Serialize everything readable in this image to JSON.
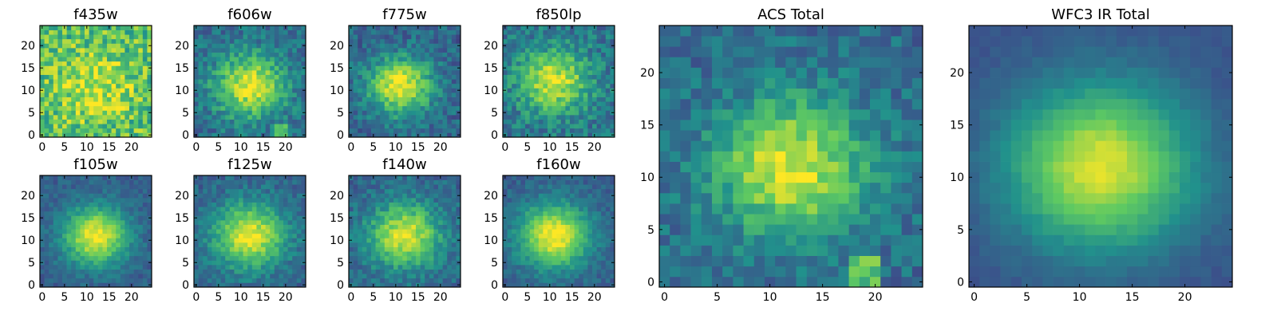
{
  "colormap": [
    "#440154",
    "#3b528b",
    "#21918c",
    "#5ec962",
    "#fde725"
  ],
  "chart_data": [
    {
      "type": "heatmap",
      "title": "f435w",
      "xticks": [
        "0",
        "5",
        "10",
        "15",
        "20"
      ],
      "yticks": [
        "0",
        "5",
        "10",
        "15",
        "20"
      ],
      "xlim": [
        -0.5,
        24.5
      ],
      "ylim": [
        -0.5,
        24.5
      ],
      "grid": false,
      "summary": "low-signal noise field; no clear source",
      "peak": {
        "x": 12,
        "y": 11,
        "sigma": 5,
        "amp": 0.25
      },
      "background": 0.7,
      "noise": 0.22
    },
    {
      "type": "heatmap",
      "title": "f606w",
      "xticks": [
        "0",
        "5",
        "10",
        "15",
        "20"
      ],
      "yticks": [
        "0",
        "5",
        "10",
        "15",
        "20"
      ],
      "xlim": [
        -0.5,
        24.5
      ],
      "ylim": [
        -0.5,
        24.5
      ],
      "grid": false,
      "summary": "source centered near (12, 11) plus compact knot near (19, 1)",
      "peak": {
        "x": 12,
        "y": 11,
        "sigma": 5,
        "amp": 0.6
      },
      "background": 0.35,
      "noise": 0.14
    },
    {
      "type": "heatmap",
      "title": "f775w",
      "xticks": [
        "0",
        "5",
        "10",
        "15",
        "20"
      ],
      "yticks": [
        "0",
        "5",
        "10",
        "15",
        "20"
      ],
      "xlim": [
        -0.5,
        24.5
      ],
      "ylim": [
        -0.5,
        24.5
      ],
      "grid": false,
      "summary": "source centered near (11, 11)",
      "peak": {
        "x": 11,
        "y": 11,
        "sigma": 4.5,
        "amp": 0.65
      },
      "background": 0.32,
      "noise": 0.13
    },
    {
      "type": "heatmap",
      "title": "f850lp",
      "xticks": [
        "0",
        "5",
        "10",
        "15",
        "20"
      ],
      "yticks": [
        "0",
        "5",
        "10",
        "15",
        "20"
      ],
      "xlim": [
        -0.5,
        24.5
      ],
      "ylim": [
        -0.5,
        24.5
      ],
      "grid": false,
      "summary": "source centered near (11, 12)",
      "peak": {
        "x": 11,
        "y": 12,
        "sigma": 5,
        "amp": 0.55
      },
      "background": 0.38,
      "noise": 0.15
    },
    {
      "type": "heatmap",
      "title": "f105w",
      "xticks": [
        "0",
        "5",
        "10",
        "15",
        "20"
      ],
      "yticks": [
        "0",
        "5",
        "10",
        "15",
        "20"
      ],
      "xlim": [
        -0.5,
        24.5
      ],
      "ylim": [
        -0.5,
        24.5
      ],
      "grid": false,
      "summary": "smooth source centered near (12, 11)",
      "peak": {
        "x": 12,
        "y": 11,
        "sigma": 4.5,
        "amp": 0.7
      },
      "background": 0.3,
      "noise": 0.08
    },
    {
      "type": "heatmap",
      "title": "f125w",
      "xticks": [
        "0",
        "5",
        "10",
        "15",
        "20"
      ],
      "yticks": [
        "0",
        "5",
        "10",
        "15",
        "20"
      ],
      "xlim": [
        -0.5,
        24.5
      ],
      "ylim": [
        -0.5,
        24.5
      ],
      "grid": false,
      "summary": "source centered near (12, 11)",
      "peak": {
        "x": 12,
        "y": 11,
        "sigma": 5,
        "amp": 0.65
      },
      "background": 0.32,
      "noise": 0.1
    },
    {
      "type": "heatmap",
      "title": "f140w",
      "xticks": [
        "0",
        "5",
        "10",
        "15",
        "20"
      ],
      "yticks": [
        "0",
        "5",
        "10",
        "15",
        "20"
      ],
      "xlim": [
        -0.5,
        24.5
      ],
      "ylim": [
        -0.5,
        24.5
      ],
      "grid": false,
      "summary": "source centered near (12, 11)",
      "peak": {
        "x": 12,
        "y": 11,
        "sigma": 5,
        "amp": 0.62
      },
      "background": 0.33,
      "noise": 0.11
    },
    {
      "type": "heatmap",
      "title": "f160w",
      "xticks": [
        "0",
        "5",
        "10",
        "15",
        "20"
      ],
      "yticks": [
        "0",
        "5",
        "10",
        "15",
        "20"
      ],
      "xlim": [
        -0.5,
        24.5
      ],
      "ylim": [
        -0.5,
        24.5
      ],
      "grid": false,
      "summary": "smooth source centered near (11, 11)",
      "peak": {
        "x": 11,
        "y": 11,
        "sigma": 5,
        "amp": 0.7
      },
      "background": 0.3,
      "noise": 0.08
    },
    {
      "type": "heatmap",
      "title": "ACS Total",
      "xticks": [
        "0",
        "5",
        "10",
        "15",
        "20"
      ],
      "yticks": [
        "0",
        "5",
        "10",
        "15",
        "20"
      ],
      "xlim": [
        -0.5,
        24.5
      ],
      "ylim": [
        -0.5,
        24.5
      ],
      "grid": false,
      "summary": "peak near (12, 11) plus bright knot near (19, 1)",
      "peak": {
        "x": 12,
        "y": 11,
        "sigma": 4.5,
        "amp": 0.6
      },
      "background": 0.35,
      "noise": 0.12
    },
    {
      "type": "heatmap",
      "title": "WFC3 IR Total",
      "xticks": [
        "0",
        "5",
        "10",
        "15",
        "20"
      ],
      "yticks": [
        "0",
        "5",
        "10",
        "15",
        "20"
      ],
      "xlim": [
        -0.5,
        24.5
      ],
      "ylim": [
        -0.5,
        24.5
      ],
      "grid": false,
      "summary": "smooth elongated source peaking near (12, 11)",
      "peak": {
        "x": 12,
        "y": 11,
        "sigma": 5.5,
        "amp": 0.7
      },
      "background": 0.25,
      "noise": 0.03
    }
  ]
}
